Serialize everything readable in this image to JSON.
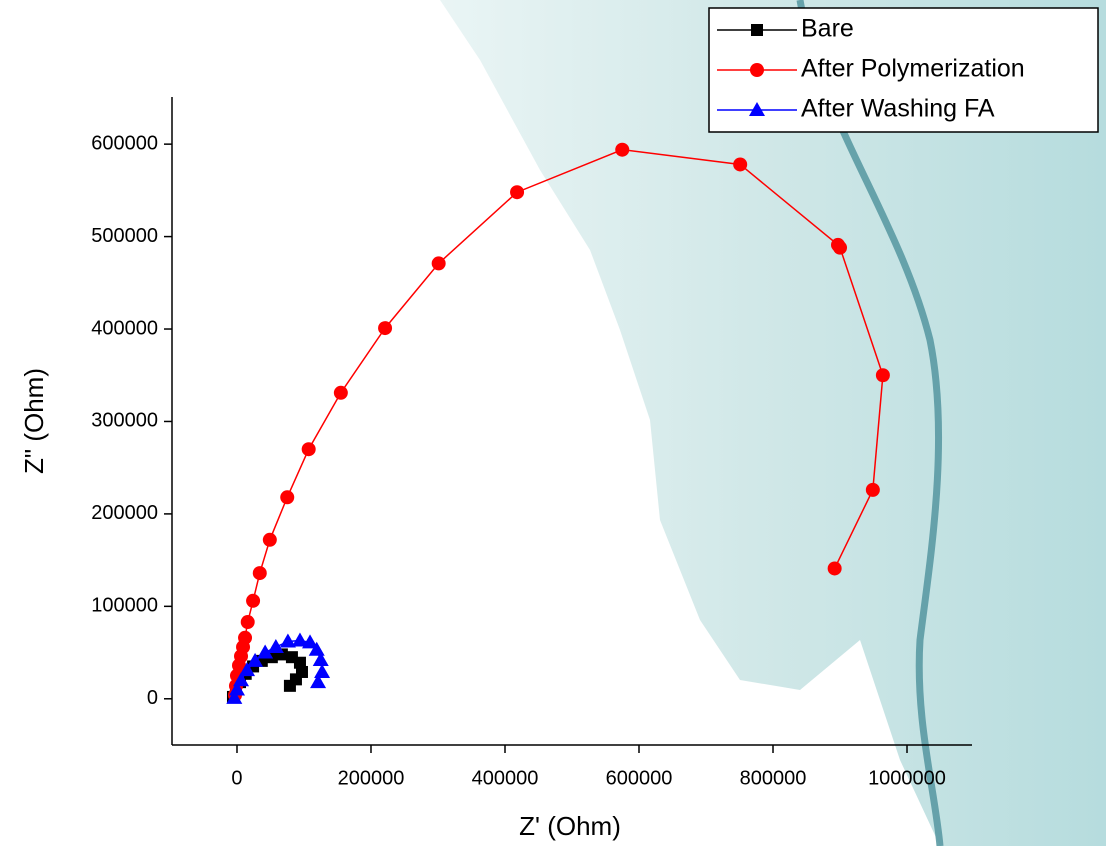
{
  "chart_data": {
    "type": "line",
    "x_label": "Z' (Ohm)",
    "y_label": "Z\" (Ohm)",
    "xlim": [
      -97000,
      1097000
    ],
    "ylim": [
      -50000,
      651000
    ],
    "xticks": [
      0,
      200000,
      400000,
      600000,
      800000,
      1000000
    ],
    "yticks": [
      0,
      100000,
      200000,
      300000,
      400000,
      500000,
      600000
    ],
    "legend": "upper right",
    "series": [
      {
        "name": "Bare",
        "color": "#000000",
        "marker": "square",
        "x": [
          -6000,
          -1500,
          4500,
          13000,
          24000,
          37000,
          52000,
          67000,
          82000,
          94000,
          97000,
          88000,
          79000
        ],
        "values": [
          2000,
          10000,
          18000,
          27000,
          35000,
          41000,
          45000,
          48000,
          45000,
          39000,
          29000,
          21000,
          14000
        ]
      },
      {
        "name": "After Polymerization",
        "color": "#ff0000",
        "marker": "circle",
        "x": [
          -3000,
          -1500,
          0,
          3000,
          6000,
          9000,
          12000,
          16000,
          24000,
          34000,
          49000,
          75000,
          107000,
          155000,
          221000,
          301000,
          418000,
          575000,
          751000,
          897000,
          900000,
          964000,
          949000,
          892000
        ],
        "values": [
          4000,
          14000,
          25000,
          36000,
          46000,
          56000,
          66000,
          83000,
          106000,
          136000,
          172000,
          218000,
          270000,
          331000,
          401000,
          471000,
          548000,
          594000,
          578000,
          491000,
          488000,
          350000,
          226000,
          141000
        ]
      },
      {
        "name": "After Washing FA",
        "color": "#0000ff",
        "marker": "triangle",
        "x": [
          -4000,
          0,
          6000,
          15000,
          27000,
          42000,
          58000,
          76000,
          94000,
          109000,
          119000,
          125000,
          127000,
          121000
        ],
        "values": [
          1000,
          10000,
          20000,
          31000,
          41000,
          50000,
          56000,
          62000,
          63000,
          61000,
          53000,
          42000,
          29000,
          18000
        ]
      }
    ]
  }
}
